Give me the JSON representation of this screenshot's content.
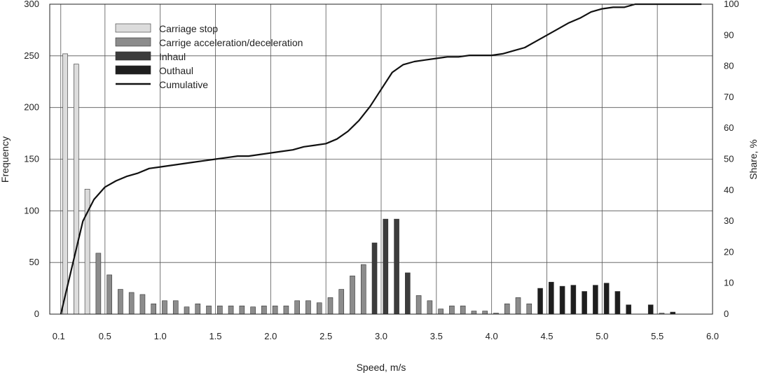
{
  "chart_data": {
    "type": "bar",
    "xlabel": "Speed, m/s",
    "ylabel": "Frequency",
    "y2label": "Share, %",
    "xlim": [
      0.0,
      6.0
    ],
    "ylim": [
      0,
      300
    ],
    "y2lim": [
      0,
      100
    ],
    "x_ticks": [
      {
        "value": 0.1,
        "label": "0.1"
      },
      {
        "value": 0.5,
        "label": "0.5"
      },
      {
        "value": 1.0,
        "label": "1.0"
      },
      {
        "value": 1.5,
        "label": "1.5"
      },
      {
        "value": 2.0,
        "label": "2.0"
      },
      {
        "value": 2.5,
        "label": "2.5"
      },
      {
        "value": 3.0,
        "label": "3.0"
      },
      {
        "value": 3.5,
        "label": "3.5"
      },
      {
        "value": 4.0,
        "label": "4.0"
      },
      {
        "value": 4.5,
        "label": "4.5"
      },
      {
        "value": 5.0,
        "label": "5.0"
      },
      {
        "value": 5.5,
        "label": "5.5"
      },
      {
        "value": 6.0,
        "label": "6.0"
      }
    ],
    "y_ticks": [
      "0",
      "50",
      "100",
      "150",
      "200",
      "250",
      "300"
    ],
    "y2_ticks": [
      "0",
      "10",
      "20",
      "30",
      "40",
      "50",
      "60",
      "70",
      "80",
      "90",
      "100"
    ],
    "grid": true,
    "legend_position": "top-left",
    "series": [
      {
        "name": "Carriage stop",
        "color": "#dcdcdc",
        "x": [
          0.14,
          0.24,
          0.34
        ],
        "values": [
          252,
          242,
          121
        ]
      },
      {
        "name": "Carrige acceleration/deceleration",
        "color": "#8c8c8c",
        "x": [
          0.44,
          0.54,
          0.64,
          0.74,
          0.84,
          0.94,
          1.04,
          1.14,
          1.24,
          1.34,
          1.44,
          1.54,
          1.64,
          1.74,
          1.84,
          1.94,
          2.04,
          2.14,
          2.24,
          2.34,
          2.44,
          2.54,
          2.64,
          2.74,
          2.84,
          3.34,
          3.44,
          3.54,
          3.64,
          3.74,
          3.84,
          3.94,
          4.04,
          4.14,
          4.24,
          4.34,
          5.54
        ],
        "values": [
          59,
          38,
          24,
          21,
          19,
          10,
          13,
          13,
          7,
          10,
          8,
          8,
          8,
          8,
          7,
          8,
          8,
          8,
          13,
          13,
          11,
          16,
          24,
          37,
          48,
          18,
          13,
          5,
          8,
          8,
          3,
          3,
          1,
          10,
          16,
          10,
          1
        ]
      },
      {
        "name": "Inhaul",
        "color": "#3c3c3c",
        "x": [
          2.94,
          3.04,
          3.14,
          3.24
        ],
        "values": [
          69,
          92,
          92,
          40
        ]
      },
      {
        "name": "Outhaul",
        "color": "#1e1e1e",
        "x": [
          4.44,
          4.54,
          4.64,
          4.74,
          4.84,
          4.94,
          5.04,
          5.14,
          5.24,
          5.44,
          5.64
        ],
        "values": [
          25,
          31,
          27,
          28,
          22,
          28,
          30,
          22,
          9,
          9,
          2
        ]
      },
      {
        "name": "Cumulative",
        "type": "line",
        "axis": "right",
        "color": "#111111",
        "x": [
          0.1,
          0.2,
          0.3,
          0.4,
          0.5,
          0.6,
          0.7,
          0.8,
          0.9,
          1.0,
          1.1,
          1.2,
          1.3,
          1.4,
          1.5,
          1.6,
          1.7,
          1.8,
          1.9,
          2.0,
          2.1,
          2.2,
          2.3,
          2.4,
          2.5,
          2.6,
          2.7,
          2.8,
          2.9,
          3.0,
          3.1,
          3.2,
          3.3,
          3.4,
          3.5,
          3.6,
          3.7,
          3.8,
          3.9,
          4.0,
          4.1,
          4.2,
          4.3,
          4.4,
          4.5,
          4.6,
          4.7,
          4.8,
          4.9,
          5.0,
          5.1,
          5.2,
          5.3,
          5.4,
          5.5,
          5.6,
          5.7,
          5.8,
          5.9
        ],
        "values": [
          0,
          15,
          30,
          37,
          41,
          43,
          44.5,
          45.5,
          47,
          47.5,
          48,
          48.5,
          49,
          49.5,
          50,
          50.5,
          51,
          51,
          51.5,
          52,
          52.5,
          53,
          54,
          54.5,
          55,
          56.5,
          59,
          62.5,
          67,
          72.5,
          78,
          80.5,
          81.5,
          82,
          82.5,
          83,
          83,
          83.5,
          83.5,
          83.5,
          84,
          85,
          86,
          88,
          90,
          92,
          94,
          95.5,
          97.5,
          98.5,
          99,
          99,
          100,
          100,
          100,
          100,
          100,
          100,
          100
        ]
      }
    ]
  }
}
